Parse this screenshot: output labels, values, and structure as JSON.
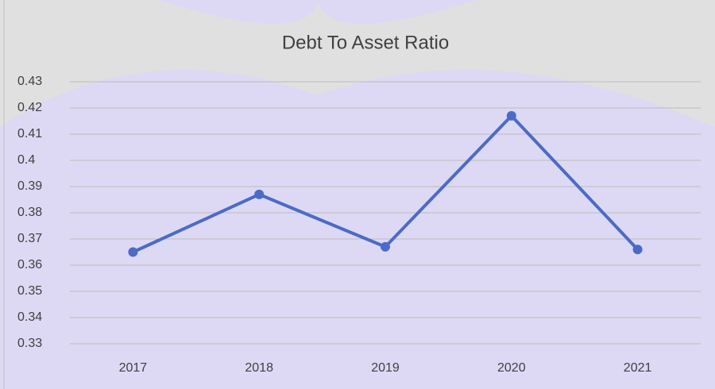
{
  "chart_data": {
    "type": "line",
    "title": "Debt To Asset Ratio",
    "categories": [
      "2017",
      "2018",
      "2019",
      "2020",
      "2021"
    ],
    "series": [
      {
        "name": "Debt To Asset Ratio",
        "color": "#4a6cc8",
        "values": [
          0.365,
          0.387,
          0.367,
          0.417,
          0.366
        ]
      }
    ],
    "ylim": [
      0.33,
      0.43
    ],
    "yticks": [
      0.33,
      0.34,
      0.35,
      0.36,
      0.37,
      0.38,
      0.39,
      0.4,
      0.41,
      0.42,
      0.43
    ],
    "grid": true
  }
}
